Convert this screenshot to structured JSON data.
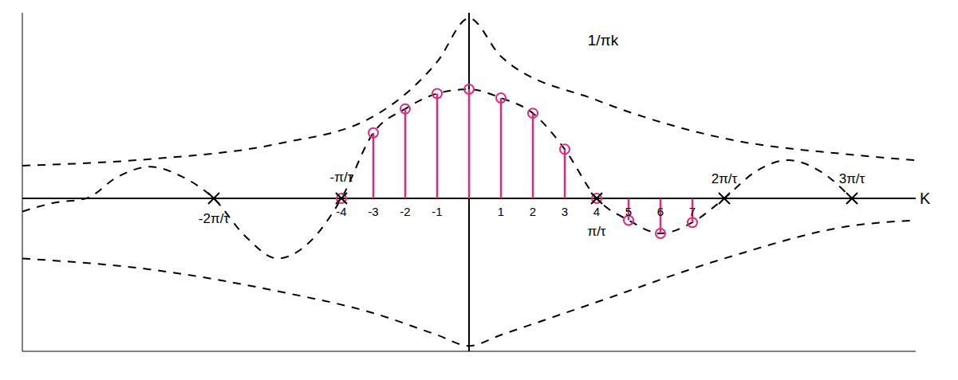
{
  "chart_data": {
    "type": "line",
    "xlim": [
      -14,
      14
    ],
    "ylim": [
      -1.4,
      1.7
    ],
    "xticks": [
      -4,
      -3,
      -2,
      -1,
      1,
      2,
      3,
      4,
      5,
      6,
      7
    ],
    "yticks": [],
    "tick_labels": "x",
    "grid": false,
    "x_label": "K",
    "annotation": {
      "text": "1/πk",
      "x": 4.2,
      "y": 1.45
    },
    "zero_marks": [
      {
        "value": -8,
        "label": "-2π/τ"
      },
      {
        "value": -4,
        "label": "-π/τ"
      },
      {
        "value": 4,
        "label": "π/τ"
      },
      {
        "value": 8,
        "label": "2π/τ"
      },
      {
        "value": 12,
        "label": "3π/τ"
      }
    ],
    "series": [
      {
        "type": "line",
        "line_style": "dashed",
        "color": "#000000",
        "x": [
          -14,
          -13,
          -12,
          -11,
          -10,
          -9,
          -8,
          -7,
          -6,
          -5,
          -4,
          -3,
          -2,
          -1,
          0,
          1,
          2,
          3,
          4,
          5,
          6,
          7,
          8,
          9,
          10,
          11,
          12
        ],
        "values": [
          -0.12,
          -0.04,
          0,
          0.2,
          0.29,
          0.2,
          0,
          -0.35,
          -0.55,
          -0.4,
          0,
          0.6,
          0.82,
          0.96,
          1,
          0.92,
          0.78,
          0.45,
          0,
          -0.2,
          -0.32,
          -0.22,
          0,
          0.25,
          0.35,
          0.25,
          0
        ]
      },
      {
        "type": "line",
        "line_style": "dashed",
        "color": "#000000",
        "x": [
          -14,
          -10,
          -6,
          -3,
          -1,
          0,
          1,
          4,
          8,
          12,
          14
        ],
        "values": [
          0.3,
          0.36,
          0.5,
          0.75,
          1.25,
          1.65,
          1.3,
          0.9,
          0.55,
          0.4,
          0.35
        ]
      },
      {
        "type": "line",
        "line_style": "dashed",
        "color": "#000000",
        "x": [
          -14,
          -10,
          -6,
          -3,
          -1,
          0,
          1,
          4,
          8,
          12,
          14
        ],
        "values": [
          -0.55,
          -0.65,
          -0.85,
          -1.05,
          -1.25,
          -1.35,
          -1.25,
          -0.95,
          -0.55,
          -0.25,
          -0.2
        ]
      },
      {
        "type": "stem",
        "marker": "circle",
        "color": "#e0287f",
        "x": [
          -4,
          -3,
          -2,
          -1,
          0,
          1,
          2,
          3,
          4,
          5,
          6,
          7
        ],
        "values": [
          0,
          0.6,
          0.82,
          0.96,
          1,
          0.92,
          0.78,
          0.45,
          0,
          -0.2,
          -0.32,
          -0.22
        ]
      }
    ]
  }
}
